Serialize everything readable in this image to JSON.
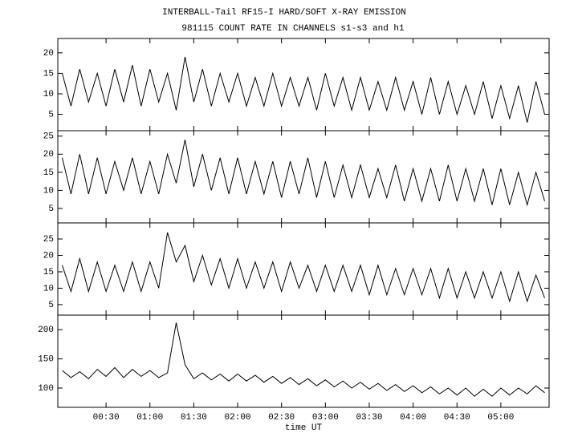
{
  "chart_data": [
    {
      "type": "line",
      "title": "INTERBALL-Tail RF15-I HARD/SOFT X-RAY EMISSION",
      "subtitle": "981115  COUNT RATE IN CHANNELS s1-s3 and h1",
      "x": [
        0,
        6,
        12,
        18,
        24,
        30,
        36,
        42,
        48,
        54,
        60,
        66,
        72,
        78,
        84,
        90,
        96,
        102,
        108,
        114,
        120,
        126,
        132,
        138,
        144,
        150,
        156,
        162,
        168,
        174,
        180,
        186,
        192,
        198,
        204,
        210,
        216,
        222,
        228,
        234,
        240,
        246,
        252,
        258,
        264,
        270,
        276,
        282,
        288,
        294,
        300,
        306,
        312,
        318,
        324,
        330
      ],
      "values": [
        15,
        7,
        16,
        8,
        15,
        7,
        16,
        8,
        17,
        7,
        16,
        8,
        15,
        6,
        19,
        8,
        16,
        7,
        15,
        8,
        15,
        7,
        14,
        7,
        15,
        7,
        14,
        7,
        14,
        6,
        15,
        7,
        14,
        6,
        14,
        6,
        13,
        6,
        14,
        6,
        13,
        5,
        14,
        5,
        13,
        5,
        12,
        5,
        13,
        4,
        12,
        4,
        12,
        3,
        13,
        5
      ],
      "xlim": [
        -3,
        333
      ],
      "ylim": [
        1,
        23.5
      ],
      "yticks": [
        5,
        10,
        15,
        20
      ],
      "color": "#000000"
    },
    {
      "type": "line",
      "x": [
        0,
        6,
        12,
        18,
        24,
        30,
        36,
        42,
        48,
        54,
        60,
        66,
        72,
        78,
        84,
        90,
        96,
        102,
        108,
        114,
        120,
        126,
        132,
        138,
        144,
        150,
        156,
        162,
        168,
        174,
        180,
        186,
        192,
        198,
        204,
        210,
        216,
        222,
        228,
        234,
        240,
        246,
        252,
        258,
        264,
        270,
        276,
        282,
        288,
        294,
        300,
        306,
        312,
        318,
        324,
        330
      ],
      "values": [
        19,
        9,
        20,
        9,
        19,
        9,
        18,
        10,
        19,
        9,
        18,
        9,
        20,
        12,
        24,
        11,
        20,
        10,
        19,
        9,
        19,
        9,
        18,
        9,
        18,
        8,
        18,
        9,
        19,
        8,
        18,
        8,
        17,
        8,
        17,
        8,
        16,
        8,
        17,
        7,
        16,
        7,
        16,
        7,
        17,
        7,
        16,
        7,
        16,
        6,
        16,
        6,
        15,
        6,
        15,
        7
      ],
      "xlim": [
        -3,
        333
      ],
      "ylim": [
        1,
        26.5
      ],
      "yticks": [
        5,
        10,
        15,
        20,
        25
      ],
      "color": "#000000"
    },
    {
      "type": "line",
      "x": [
        0,
        6,
        12,
        18,
        24,
        30,
        36,
        42,
        48,
        54,
        60,
        66,
        72,
        78,
        84,
        90,
        96,
        102,
        108,
        114,
        120,
        126,
        132,
        138,
        144,
        150,
        156,
        162,
        168,
        174,
        180,
        186,
        192,
        198,
        204,
        210,
        216,
        222,
        228,
        234,
        240,
        246,
        252,
        258,
        264,
        270,
        276,
        282,
        288,
        294,
        300,
        306,
        312,
        318,
        324,
        330
      ],
      "values": [
        17,
        9,
        19,
        9,
        18,
        9,
        17,
        9,
        18,
        9,
        18,
        10,
        27,
        18,
        23,
        12,
        20,
        11,
        19,
        10,
        19,
        10,
        18,
        10,
        18,
        9,
        18,
        10,
        17,
        9,
        17,
        9,
        17,
        9,
        17,
        8,
        17,
        8,
        16,
        8,
        16,
        8,
        16,
        7,
        16,
        7,
        15,
        7,
        15,
        7,
        15,
        6,
        15,
        6,
        14,
        7
      ],
      "xlim": [
        -3,
        333
      ],
      "ylim": [
        1.8,
        29.9
      ],
      "yticks": [
        5,
        10,
        15,
        20,
        25
      ],
      "color": "#000000"
    },
    {
      "type": "line",
      "x_label": "time UT",
      "x": [
        0,
        6,
        12,
        18,
        24,
        30,
        36,
        42,
        48,
        54,
        60,
        66,
        72,
        78,
        84,
        90,
        96,
        102,
        108,
        114,
        120,
        126,
        132,
        138,
        144,
        150,
        156,
        162,
        168,
        174,
        180,
        186,
        192,
        198,
        204,
        210,
        216,
        222,
        228,
        234,
        240,
        246,
        252,
        258,
        264,
        270,
        276,
        282,
        288,
        294,
        300,
        306,
        312,
        318,
        324,
        330
      ],
      "values": [
        130,
        118,
        128,
        116,
        132,
        120,
        135,
        118,
        132,
        120,
        130,
        118,
        126,
        212,
        140,
        116,
        126,
        114,
        124,
        112,
        124,
        112,
        122,
        110,
        120,
        108,
        118,
        106,
        116,
        104,
        114,
        102,
        112,
        100,
        110,
        98,
        108,
        96,
        106,
        94,
        104,
        92,
        102,
        90,
        100,
        88,
        100,
        86,
        98,
        86,
        100,
        88,
        100,
        90,
        104,
        92
      ],
      "xlim": [
        -3,
        333
      ],
      "ylim": [
        67,
        225
      ],
      "yticks": [
        100,
        150,
        200
      ],
      "xticks": [
        {
          "value": 30,
          "label": "00:30"
        },
        {
          "value": 60,
          "label": "01:00"
        },
        {
          "value": 90,
          "label": "01:30"
        },
        {
          "value": 120,
          "label": "02:00"
        },
        {
          "value": 150,
          "label": "02:30"
        },
        {
          "value": 180,
          "label": "03:00"
        },
        {
          "value": 210,
          "label": "03:30"
        },
        {
          "value": 240,
          "label": "04:00"
        },
        {
          "value": 270,
          "label": "04:30"
        },
        {
          "value": 300,
          "label": "05:00"
        }
      ],
      "color": "#000000"
    }
  ]
}
